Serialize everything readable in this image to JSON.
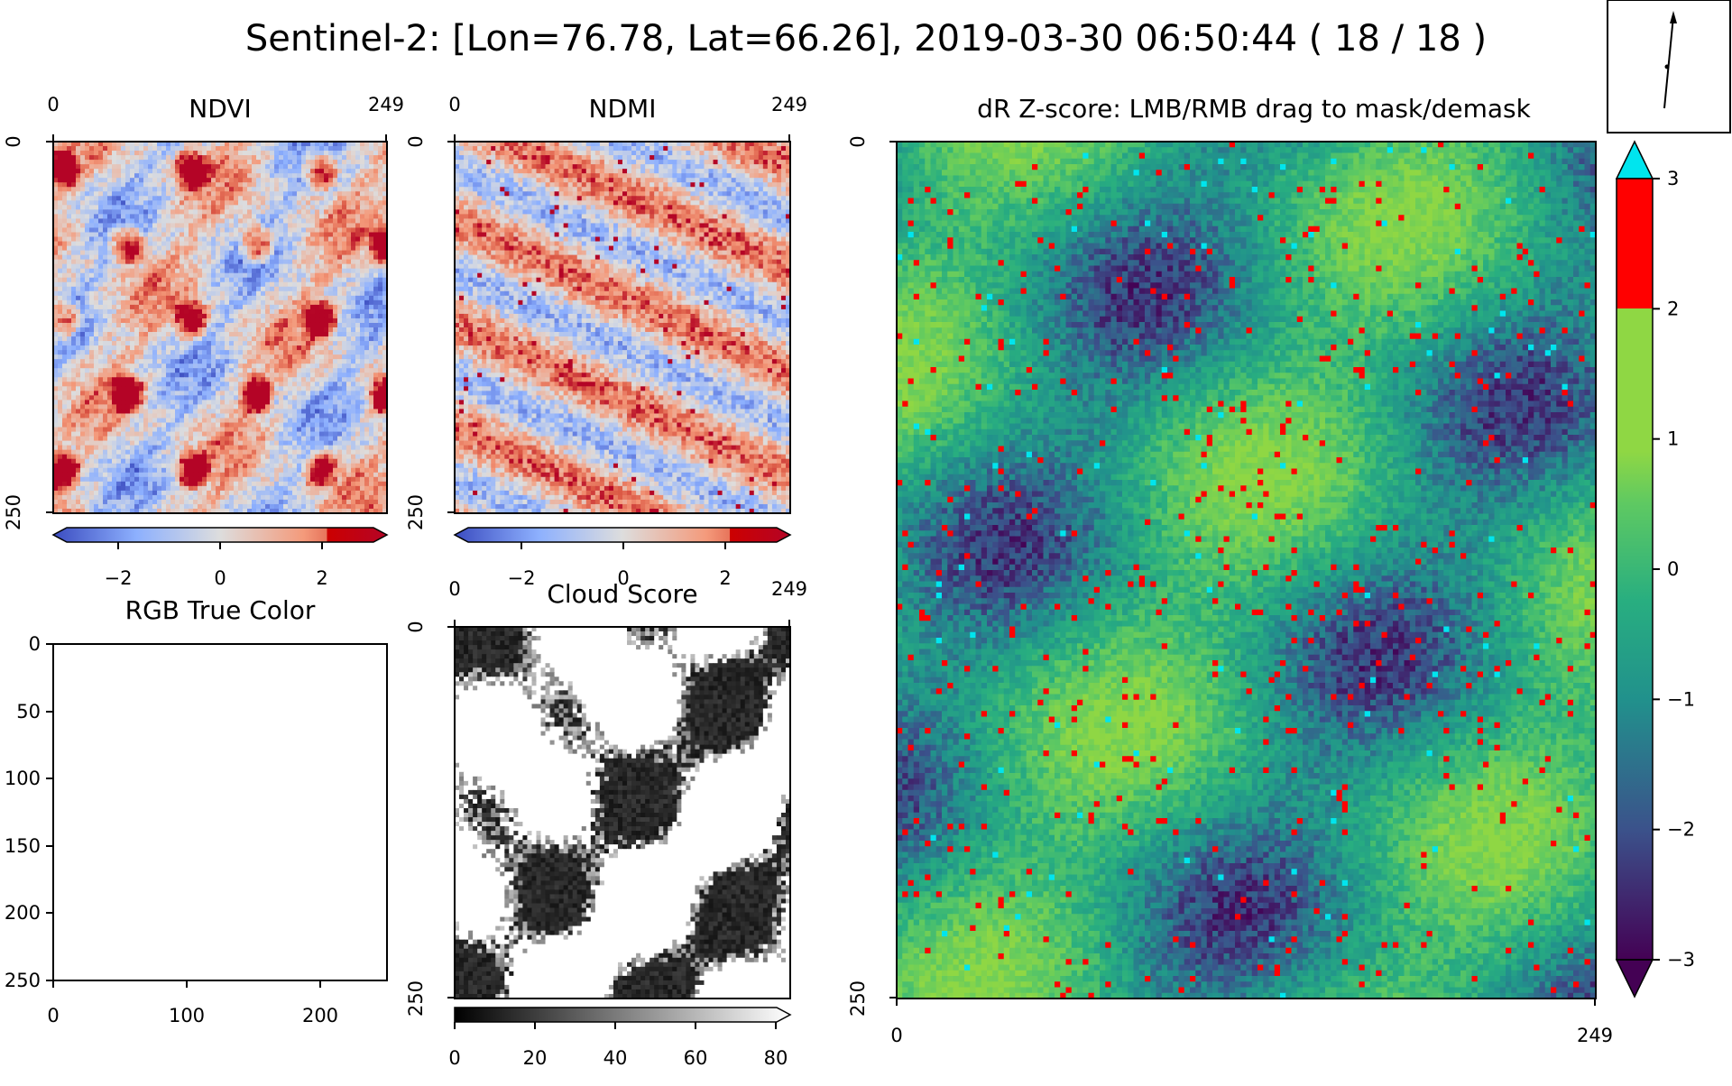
{
  "figure": {
    "title": "Sentinel-2: [Lon=76.78, Lat=66.26], 2019-03-30 06:50:44 ( 18 / 18 )"
  },
  "panels": {
    "ndvi": {
      "title": "NDVI",
      "x_ticks": [
        "0",
        "249"
      ],
      "y_ticks": [
        "0",
        "250"
      ],
      "colorbar_ticks": [
        "−2",
        "0",
        "2"
      ]
    },
    "ndmi": {
      "title": "NDMI",
      "x_ticks": [
        "0",
        "249"
      ],
      "y_ticks": [
        "0",
        "250"
      ],
      "colorbar_ticks": [
        "−2",
        "0",
        "2"
      ]
    },
    "rgb": {
      "title": "RGB True Color",
      "x_ticks": [
        "0",
        "100",
        "200"
      ],
      "y_ticks": [
        "0",
        "50",
        "100",
        "150",
        "200",
        "250"
      ]
    },
    "cloud": {
      "title": "Cloud Score",
      "x_ticks": [
        "0",
        "249"
      ],
      "y_ticks": [
        "0",
        "250"
      ],
      "colorbar_ticks": [
        "0",
        "20",
        "40",
        "60",
        "80"
      ]
    },
    "zscore": {
      "title": "dR Z-score: LMB/RMB drag to mask/demask",
      "x_ticks": [
        "0",
        "249"
      ],
      "y_ticks": [
        "0",
        "250"
      ],
      "colorbar_ticks": [
        "3",
        "2",
        "1",
        "0",
        "−1",
        "−2",
        "−3"
      ]
    }
  },
  "colors": {
    "mask_red": "#ff0000",
    "over_cyan": "#00e5ee",
    "ndvi_low": "#3b4cc0",
    "ndvi_high": "#b40426"
  },
  "chart_data": [
    {
      "type": "heatmap",
      "title": "NDVI",
      "x_range": [
        0,
        249
      ],
      "y_range": [
        0,
        250
      ],
      "colorbar_ticks": [
        -2,
        0,
        2
      ],
      "colormap": "coolwarm"
    },
    {
      "type": "heatmap",
      "title": "NDMI",
      "x_range": [
        0,
        249
      ],
      "y_range": [
        0,
        250
      ],
      "colorbar_ticks": [
        -2,
        0,
        2
      ],
      "colormap": "coolwarm"
    },
    {
      "type": "heatmap",
      "title": "RGB True Color",
      "x_ticks": [
        0,
        100,
        200
      ],
      "y_ticks": [
        0,
        50,
        100,
        150,
        200,
        250
      ],
      "empty": true
    },
    {
      "type": "heatmap",
      "title": "Cloud Score",
      "x_range": [
        0,
        249
      ],
      "y_range": [
        0,
        250
      ],
      "colorbar_ticks": [
        0,
        20,
        40,
        60,
        80
      ],
      "colormap": "gray"
    },
    {
      "type": "heatmap",
      "title": "dR Z-score: LMB/RMB drag to mask/demask",
      "x_range": [
        0,
        249
      ],
      "y_range": [
        0,
        250
      ],
      "colorbar_ticks": [
        -3,
        -2,
        -1,
        0,
        1,
        2,
        3
      ],
      "colormap": "viridis",
      "mask_threshold": 2
    }
  ]
}
